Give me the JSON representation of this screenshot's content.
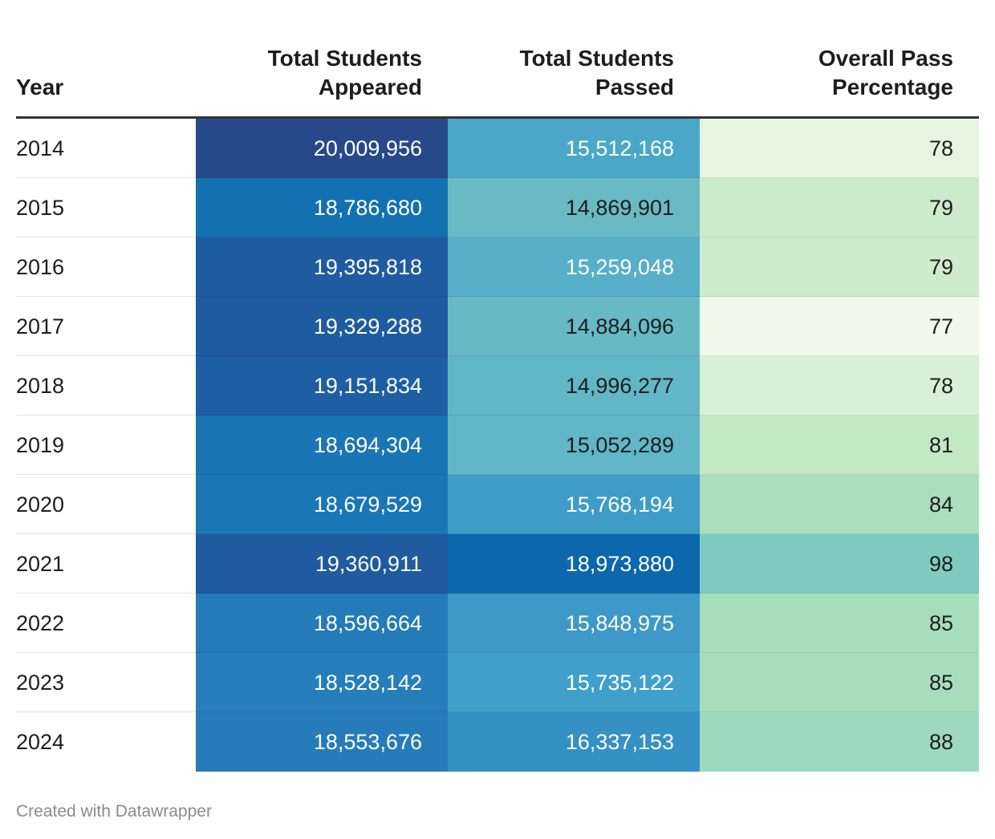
{
  "chart_data": {
    "type": "table",
    "columns": [
      "Year",
      "Total Students Appeared",
      "Total Students Passed",
      "Overall Pass Percentage"
    ],
    "rows": [
      {
        "year": "2014",
        "appeared": "20,009,956",
        "passed": "15,512,168",
        "pct": "78",
        "appeared_value": 20009956,
        "passed_value": 15512168,
        "pct_value": 78
      },
      {
        "year": "2015",
        "appeared": "18,786,680",
        "passed": "14,869,901",
        "pct": "79",
        "appeared_value": 18786680,
        "passed_value": 14869901,
        "pct_value": 79
      },
      {
        "year": "2016",
        "appeared": "19,395,818",
        "passed": "15,259,048",
        "pct": "79",
        "appeared_value": 19395818,
        "passed_value": 15259048,
        "pct_value": 79
      },
      {
        "year": "2017",
        "appeared": "19,329,288",
        "passed": "14,884,096",
        "pct": "77",
        "appeared_value": 19329288,
        "passed_value": 14884096,
        "pct_value": 77
      },
      {
        "year": "2018",
        "appeared": "19,151,834",
        "passed": "14,996,277",
        "pct": "78",
        "appeared_value": 19151834,
        "passed_value": 14996277,
        "pct_value": 78
      },
      {
        "year": "2019",
        "appeared": "18,694,304",
        "passed": "15,052,289",
        "pct": "81",
        "appeared_value": 18694304,
        "passed_value": 15052289,
        "pct_value": 81
      },
      {
        "year": "2020",
        "appeared": "18,679,529",
        "passed": "15,768,194",
        "pct": "84",
        "appeared_value": 18679529,
        "passed_value": 15768194,
        "pct_value": 84
      },
      {
        "year": "2021",
        "appeared": "19,360,911",
        "passed": "18,973,880",
        "pct": "98",
        "appeared_value": 19360911,
        "passed_value": 18973880,
        "pct_value": 98
      },
      {
        "year": "2022",
        "appeared": "18,596,664",
        "passed": "15,848,975",
        "pct": "85",
        "appeared_value": 18596664,
        "passed_value": 15848975,
        "pct_value": 85
      },
      {
        "year": "2023",
        "appeared": "18,528,142",
        "passed": "15,735,122",
        "pct": "85",
        "appeared_value": 18528142,
        "passed_value": 15735122,
        "pct_value": 85
      },
      {
        "year": "2024",
        "appeared": "18,553,676",
        "passed": "16,337,153",
        "pct": "88",
        "appeared_value": 18553676,
        "passed_value": 16337153,
        "pct_value": 88
      }
    ],
    "cell_colors": {
      "appeared": [
        "#27498a",
        "#1371b2",
        "#1f5b9f",
        "#1e5c9f",
        "#1e5fa3",
        "#1a75b4",
        "#1a76b5",
        "#1f5b9e",
        "#237bb8",
        "#267eba",
        "#267cb9"
      ],
      "passed": [
        "#4aa7c8",
        "#6abac5",
        "#57afc8",
        "#68b9c6",
        "#62b7c7",
        "#61b6c8",
        "#3f9bc7",
        "#0d67ad",
        "#3e99c8",
        "#40a0cb",
        "#3590c4"
      ],
      "pct": [
        "#e5f5e0",
        "#ccebcc",
        "#ceeccd",
        "#f0f8e9",
        "#d8f0d5",
        "#c4e8c4",
        "#a9dfbd",
        "#80cac2",
        "#a6debc",
        "#a6debc",
        "#9dd9bf"
      ]
    },
    "text_colors": {
      "appeared": [
        "#ffffff",
        "#ffffff",
        "#ffffff",
        "#ffffff",
        "#ffffff",
        "#ffffff",
        "#ffffff",
        "#ffffff",
        "#ffffff",
        "#ffffff",
        "#ffffff"
      ],
      "passed": [
        "#ffffff",
        "#1d1d1d",
        "#ffffff",
        "#1d1d1d",
        "#1d1d1d",
        "#1d1d1d",
        "#ffffff",
        "#ffffff",
        "#ffffff",
        "#ffffff",
        "#ffffff"
      ],
      "pct": [
        "#1d1d1d",
        "#1d1d1d",
        "#1d1d1d",
        "#1d1d1d",
        "#1d1d1d",
        "#1d1d1d",
        "#1d1d1d",
        "#1d1d1d",
        "#1d1d1d",
        "#1d1d1d",
        "#1d1d1d"
      ]
    }
  },
  "header": {
    "year": "Year",
    "appeared_line1": "Total Students",
    "appeared_line2": "Appeared",
    "passed_line1": "Total Students",
    "passed_line2": "Passed",
    "pct_line1": "Overall Pass",
    "pct_line2": "Percentage"
  },
  "footer": {
    "credit": "Created with Datawrapper"
  }
}
